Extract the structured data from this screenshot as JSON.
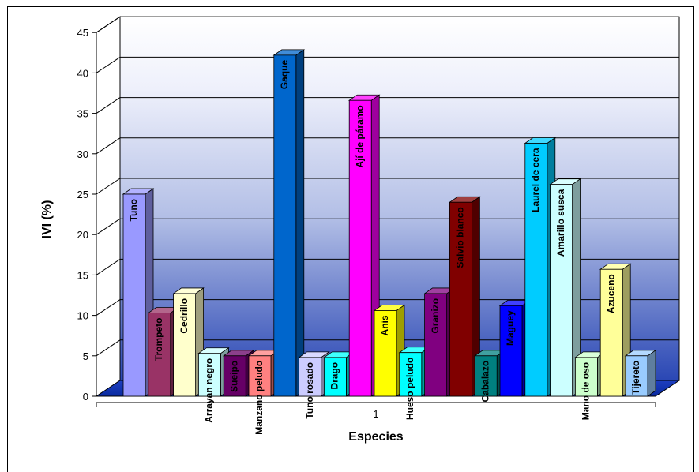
{
  "chart_data": {
    "type": "bar",
    "style": "3d-clustered-column",
    "categories": [
      "1"
    ],
    "xlabel": "Especies",
    "ylabel": "IVI (%)",
    "ylim": [
      0,
      45
    ],
    "yticks": [
      "0",
      "5",
      "10",
      "15",
      "20",
      "25",
      "30",
      "35",
      "40",
      "45"
    ],
    "grid": true,
    "legend": "none",
    "background": "blue-gradient",
    "series": [
      {
        "name": "Tuno",
        "values": [
          25.0
        ],
        "color": "#9999ff"
      },
      {
        "name": "Trompeto",
        "values": [
          10.3
        ],
        "color": "#993366"
      },
      {
        "name": "Cedrillo",
        "values": [
          12.7
        ],
        "color": "#ffffcc"
      },
      {
        "name": "Arrayan negro",
        "values": [
          5.3
        ],
        "color": "#ccffff"
      },
      {
        "name": "Sueipo",
        "values": [
          5.0
        ],
        "color": "#660066"
      },
      {
        "name": "Manzano peludo",
        "values": [
          5.0
        ],
        "color": "#ff8080"
      },
      {
        "name": "Gaque",
        "values": [
          42.2
        ],
        "color": "#0066cc"
      },
      {
        "name": "Tuno rosado",
        "values": [
          4.8
        ],
        "color": "#ccccff"
      },
      {
        "name": "Drago",
        "values": [
          4.8
        ],
        "color": "#00ffff"
      },
      {
        "name": "Ají de páramo",
        "values": [
          36.6
        ],
        "color": "#ff00ff"
      },
      {
        "name": "Anis",
        "values": [
          10.6
        ],
        "color": "#ffff00"
      },
      {
        "name": "Hueso peludo",
        "values": [
          5.4
        ],
        "color": "#00ffff"
      },
      {
        "name": "Granizo",
        "values": [
          12.7
        ],
        "color": "#800080"
      },
      {
        "name": "Salvio blanco",
        "values": [
          24.0
        ],
        "color": "#800000"
      },
      {
        "name": "Cabalazo",
        "values": [
          5.0
        ],
        "color": "#008080"
      },
      {
        "name": "Maguey",
        "values": [
          11.2
        ],
        "color": "#0000ff"
      },
      {
        "name": "Laurel de cera",
        "values": [
          31.3
        ],
        "color": "#00ccff"
      },
      {
        "name": "Amarillo susca",
        "values": [
          26.2
        ],
        "color": "#ccffff"
      },
      {
        "name": "Mano de oso",
        "values": [
          4.8
        ],
        "color": "#ccffcc"
      },
      {
        "name": "Azuceno",
        "values": [
          15.7
        ],
        "color": "#ffff99"
      },
      {
        "name": "Tijereto",
        "values": [
          5.0
        ],
        "color": "#99ccff"
      }
    ]
  }
}
